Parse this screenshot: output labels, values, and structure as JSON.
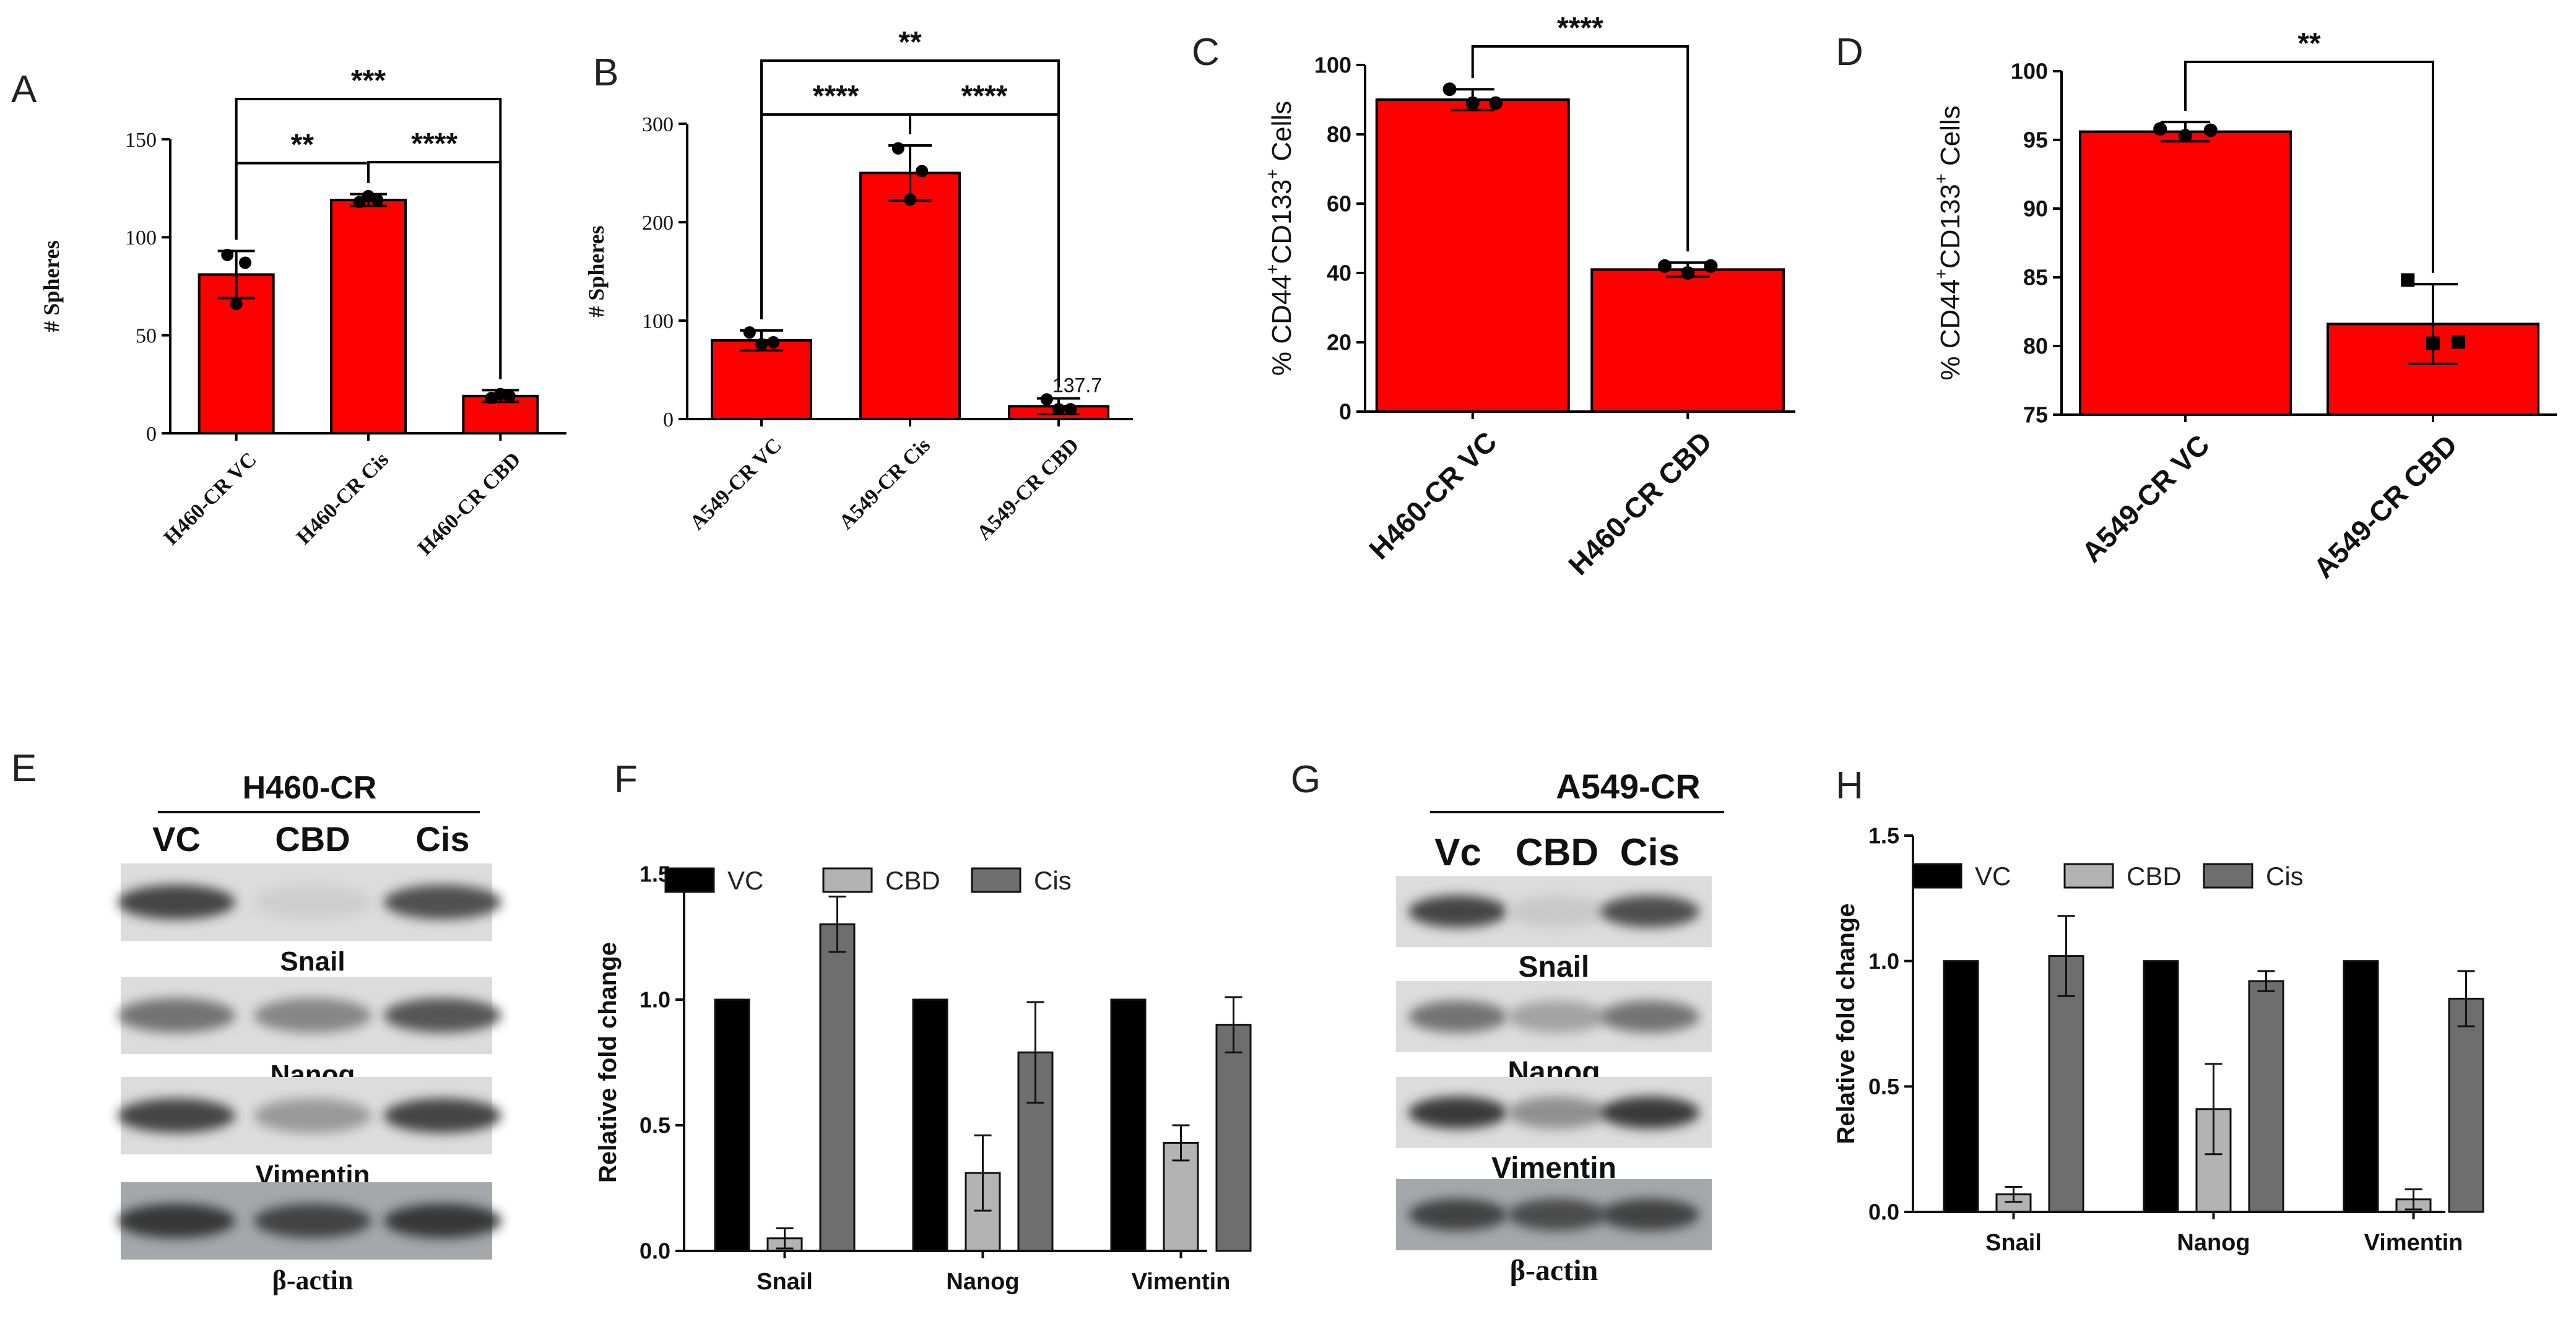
{
  "colors": {
    "red": "#ff0000",
    "black": "#000000",
    "light_gray": "#b3b3b3",
    "dark_gray": "#6e6e6e"
  },
  "chart_data": [
    {
      "panel": "A",
      "type": "bar",
      "ylabel": "# Spheres",
      "ylim": [
        0,
        150
      ],
      "yticks": [
        0,
        50,
        100,
        150
      ],
      "categories": [
        "H460-CR VC",
        "H460-CR Cis",
        "H460-CR CBD"
      ],
      "values": [
        81,
        119,
        19
      ],
      "errors": [
        12,
        3,
        3
      ],
      "points": [
        [
          91,
          66,
          87
        ],
        [
          118,
          121,
          119
        ],
        [
          18,
          20,
          19
        ]
      ],
      "significance": [
        {
          "from": 0,
          "to": 1,
          "label": "**"
        },
        {
          "from": 1,
          "to": 2,
          "label": "****"
        },
        {
          "from": 0,
          "to": 2,
          "label": "***"
        }
      ]
    },
    {
      "panel": "B",
      "type": "bar",
      "ylabel": "# Spheres",
      "ylim": [
        0,
        300
      ],
      "yticks": [
        0,
        100,
        200,
        300
      ],
      "categories": [
        "A549-CR VC",
        "A549-CR Cis",
        "A549-CR CBD"
      ],
      "values": [
        80,
        250,
        13
      ],
      "errors": [
        10,
        28,
        8
      ],
      "points": [
        [
          88,
          76,
          78
        ],
        [
          275,
          223,
          252
        ],
        [
          20,
          10,
          10
        ]
      ],
      "annotation": "137.7",
      "significance": [
        {
          "from": 0,
          "to": 1,
          "label": "****"
        },
        {
          "from": 1,
          "to": 2,
          "label": "****"
        },
        {
          "from": 0,
          "to": 2,
          "label": "**"
        }
      ]
    },
    {
      "panel": "C",
      "type": "bar",
      "ylabel": "% CD44",
      "ylabel_sup1": "+",
      "ylabel_mid": "CD133",
      "ylabel_sup2": "+",
      "ylabel_end": " Cells",
      "ylim": [
        0,
        100
      ],
      "yticks": [
        0,
        20,
        40,
        60,
        80,
        100
      ],
      "categories": [
        "H460-CR VC",
        "H460-CR CBD"
      ],
      "values": [
        90,
        41
      ],
      "errors": [
        3,
        2
      ],
      "points": [
        [
          93,
          89,
          89
        ],
        [
          42,
          40,
          42
        ]
      ],
      "significance": [
        {
          "from": 0,
          "to": 1,
          "label": "****"
        }
      ]
    },
    {
      "panel": "D",
      "type": "bar",
      "ylabel": "% CD44",
      "ylabel_sup1": "+",
      "ylabel_mid": "CD133",
      "ylabel_sup2": "+",
      "ylabel_end": " Cells",
      "ylim": [
        75,
        100
      ],
      "yticks": [
        75,
        80,
        85,
        90,
        95,
        100
      ],
      "categories": [
        "A549-CR VC",
        "A549-CR CBD"
      ],
      "values": [
        95.6,
        81.6
      ],
      "errors": [
        0.7,
        2.9
      ],
      "points": [
        [
          95.8,
          95.3,
          95.7
        ],
        [
          84.8,
          80.2,
          80.3
        ]
      ],
      "significance": [
        {
          "from": 0,
          "to": 1,
          "label": "**"
        }
      ]
    },
    {
      "panel": "F",
      "type": "bar",
      "ylabel": "Relative fold change",
      "ylim": [
        0,
        1.5
      ],
      "yticks": [
        "0.0",
        "0.5",
        "1.0",
        "1.5"
      ],
      "categories": [
        "Snail",
        "Nanog",
        "Vimentin"
      ],
      "series": [
        {
          "name": "VC",
          "values": [
            1.0,
            1.0,
            1.0
          ],
          "errors": [
            0,
            0,
            0
          ]
        },
        {
          "name": "CBD",
          "values": [
            0.05,
            0.31,
            0.43
          ],
          "errors": [
            0.04,
            0.15,
            0.07
          ]
        },
        {
          "name": "Cis",
          "values": [
            1.3,
            0.79,
            0.9
          ],
          "errors": [
            0.11,
            0.2,
            0.11
          ]
        }
      ]
    },
    {
      "panel": "H",
      "type": "bar",
      "ylabel": "Relative fold change",
      "ylim": [
        0,
        1.5
      ],
      "yticks": [
        "0.0",
        "0.5",
        "1.0",
        "1.5"
      ],
      "categories": [
        "Snail",
        "Nanog",
        "Vimentin"
      ],
      "series": [
        {
          "name": "VC",
          "values": [
            1.0,
            1.0,
            1.0
          ],
          "errors": [
            0,
            0,
            0
          ]
        },
        {
          "name": "CBD",
          "values": [
            0.07,
            0.41,
            0.05
          ],
          "errors": [
            0.03,
            0.18,
            0.04
          ]
        },
        {
          "name": "Cis",
          "values": [
            1.02,
            0.92,
            0.85
          ],
          "errors": [
            0.16,
            0.04,
            0.11
          ]
        }
      ]
    }
  ],
  "blots": [
    {
      "panel": "E",
      "title": "H460-CR",
      "lanes": [
        "VC",
        "CBD",
        "Cis"
      ],
      "rows": [
        {
          "label": "Snail",
          "intensity": [
            0.85,
            0.12,
            0.78
          ]
        },
        {
          "label": "Nanog",
          "intensity": [
            0.6,
            0.5,
            0.75
          ]
        },
        {
          "label": "Vimentin",
          "intensity": [
            0.85,
            0.4,
            0.85
          ]
        },
        {
          "label": "β-actin",
          "intensity": [
            0.9,
            0.85,
            0.9
          ]
        }
      ]
    },
    {
      "panel": "G",
      "title": "A549-CR",
      "lanes": [
        "Vc",
        "CBD",
        "Cis"
      ],
      "rows": [
        {
          "label": "Snail",
          "intensity": [
            0.85,
            0.15,
            0.8
          ]
        },
        {
          "label": "Nanog",
          "intensity": [
            0.6,
            0.35,
            0.6
          ]
        },
        {
          "label": "Vimentin",
          "intensity": [
            0.9,
            0.45,
            0.9
          ]
        },
        {
          "label": "β-actin",
          "intensity": [
            0.85,
            0.8,
            0.85
          ]
        }
      ]
    }
  ]
}
